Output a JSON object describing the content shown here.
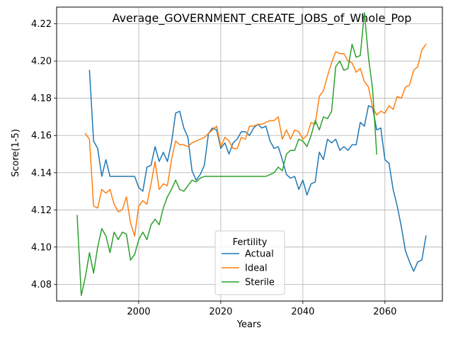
{
  "chart_data": {
    "type": "line",
    "title": "Average_GOVERNMENT_CREATE_JOBS_of_Whole_Pop",
    "xlabel": "Years",
    "ylabel": "Score(1-5)",
    "xlim": [
      1980,
      2074
    ],
    "ylim": [
      4.071,
      4.229
    ],
    "xticks": [
      2000,
      2020,
      2040,
      2060
    ],
    "yticks": [
      4.08,
      4.1,
      4.12,
      4.14,
      4.16,
      4.18,
      4.2,
      4.22
    ],
    "xtick_labels": [
      "2000",
      "2020",
      "2040",
      "2060"
    ],
    "ytick_labels": [
      "4.08",
      "4.10",
      "4.12",
      "4.14",
      "4.16",
      "4.18",
      "4.20",
      "4.22"
    ],
    "grid": true,
    "legend": {
      "title": "Fertility",
      "position": "lower-center"
    },
    "series": [
      {
        "name": "Actual",
        "color": "#1f77b4",
        "x": [
          1988,
          1989,
          1990,
          1991,
          1992,
          1993,
          1994,
          1995,
          1996,
          1997,
          1998,
          1999,
          2000,
          2001,
          2002,
          2003,
          2004,
          2005,
          2006,
          2007,
          2008,
          2009,
          2010,
          2011,
          2012,
          2013,
          2014,
          2015,
          2016,
          2017,
          2018,
          2019,
          2020,
          2021,
          2022,
          2023,
          2024,
          2025,
          2026,
          2027,
          2028,
          2029,
          2030,
          2031,
          2032,
          2033,
          2034,
          2035,
          2036,
          2037,
          2038,
          2039,
          2040,
          2041,
          2042,
          2043,
          2044,
          2045,
          2046,
          2047,
          2048,
          2049,
          2050,
          2051,
          2052,
          2053,
          2054,
          2055,
          2056,
          2057,
          2058,
          2059,
          2060,
          2061,
          2062,
          2063,
          2064,
          2065,
          2066,
          2067,
          2068,
          2069,
          2070
        ],
        "values": [
          4.195,
          4.157,
          4.153,
          4.138,
          4.147,
          4.138,
          4.138,
          4.138,
          4.138,
          4.138,
          4.138,
          4.138,
          4.132,
          4.13,
          4.143,
          4.144,
          4.154,
          4.146,
          4.151,
          4.146,
          4.156,
          4.172,
          4.173,
          4.164,
          4.159,
          4.141,
          4.136,
          4.139,
          4.144,
          4.161,
          4.164,
          4.163,
          4.153,
          4.156,
          4.15,
          4.156,
          4.158,
          4.162,
          4.162,
          4.16,
          4.164,
          4.166,
          4.164,
          4.165,
          4.157,
          4.153,
          4.154,
          4.147,
          4.139,
          4.137,
          4.138,
          4.131,
          4.136,
          4.128,
          4.134,
          4.135,
          4.151,
          4.147,
          4.158,
          4.156,
          4.158,
          4.152,
          4.154,
          4.152,
          4.155,
          4.155,
          4.167,
          4.165,
          4.176,
          4.175,
          4.163,
          4.164,
          4.147,
          4.145,
          4.131,
          4.122,
          4.111,
          4.098,
          4.092,
          4.087,
          4.092,
          4.093,
          4.106
        ]
      },
      {
        "name": "Ideal",
        "color": "#ff7f0e",
        "x": [
          1987,
          1988,
          1989,
          1990,
          1991,
          1992,
          1993,
          1994,
          1995,
          1996,
          1997,
          1998,
          1999,
          2000,
          2001,
          2002,
          2003,
          2004,
          2005,
          2006,
          2007,
          2008,
          2009,
          2010,
          2011,
          2012,
          2013,
          2014,
          2015,
          2016,
          2017,
          2018,
          2019,
          2020,
          2021,
          2022,
          2023,
          2024,
          2025,
          2026,
          2027,
          2028,
          2029,
          2030,
          2031,
          2032,
          2033,
          2034,
          2035,
          2036,
          2037,
          2038,
          2039,
          2040,
          2041,
          2042,
          2043,
          2044,
          2045,
          2046,
          2047,
          2048,
          2049,
          2050,
          2051,
          2052,
          2053,
          2054,
          2055,
          2056,
          2057,
          2058,
          2059,
          2060,
          2061,
          2062,
          2063,
          2064,
          2065,
          2066,
          2067,
          2068,
          2069,
          2070
        ],
        "values": [
          4.161,
          4.158,
          4.122,
          4.121,
          4.131,
          4.129,
          4.131,
          4.123,
          4.119,
          4.12,
          4.127,
          4.113,
          4.106,
          4.122,
          4.125,
          4.123,
          4.134,
          4.146,
          4.131,
          4.134,
          4.133,
          4.147,
          4.157,
          4.155,
          4.155,
          4.154,
          4.156,
          4.157,
          4.158,
          4.159,
          4.161,
          4.163,
          4.165,
          4.154,
          4.159,
          4.157,
          4.153,
          4.153,
          4.159,
          4.158,
          4.165,
          4.165,
          4.166,
          4.166,
          4.167,
          4.168,
          4.168,
          4.17,
          4.158,
          4.163,
          4.158,
          4.163,
          4.162,
          4.158,
          4.16,
          4.167,
          4.166,
          4.181,
          4.184,
          4.192,
          4.199,
          4.205,
          4.204,
          4.204,
          4.2,
          4.199,
          4.194,
          4.196,
          4.189,
          4.186,
          4.175,
          4.171,
          4.173,
          4.172,
          4.176,
          4.174,
          4.181,
          4.18,
          4.186,
          4.187,
          4.195,
          4.197,
          4.206,
          4.209
        ]
      },
      {
        "name": "Sterile",
        "color": "#2ca02c",
        "x": [
          1985,
          1986,
          1987,
          1988,
          1989,
          1990,
          1991,
          1992,
          1993,
          1994,
          1995,
          1996,
          1997,
          1998,
          1999,
          2000,
          2001,
          2002,
          2003,
          2004,
          2005,
          2006,
          2007,
          2008,
          2009,
          2010,
          2011,
          2012,
          2013,
          2014,
          2015,
          2016,
          2017,
          2018,
          2019,
          2020,
          2021,
          2022,
          2023,
          2024,
          2025,
          2026,
          2027,
          2028,
          2029,
          2030,
          2031,
          2032,
          2033,
          2034,
          2035,
          2036,
          2037,
          2038,
          2039,
          2040,
          2041,
          2042,
          2043,
          2044,
          2045,
          2046,
          2047,
          2048,
          2049,
          2050,
          2051,
          2052,
          2053,
          2054,
          2055,
          2056,
          2057,
          2058
        ],
        "values": [
          4.117,
          4.074,
          4.084,
          4.097,
          4.086,
          4.1,
          4.11,
          4.106,
          4.097,
          4.108,
          4.104,
          4.108,
          4.107,
          4.093,
          4.096,
          4.104,
          4.108,
          4.104,
          4.112,
          4.115,
          4.112,
          4.121,
          4.127,
          4.131,
          4.136,
          4.131,
          4.13,
          4.133,
          4.136,
          4.135,
          4.137,
          4.138,
          4.138,
          4.138,
          4.138,
          4.138,
          4.138,
          4.138,
          4.138,
          4.138,
          4.138,
          4.138,
          4.138,
          4.138,
          4.138,
          4.138,
          4.138,
          4.139,
          4.14,
          4.143,
          4.141,
          4.15,
          4.152,
          4.152,
          4.158,
          4.157,
          4.154,
          4.16,
          4.168,
          4.163,
          4.17,
          4.169,
          4.173,
          4.197,
          4.2,
          4.195,
          4.196,
          4.209,
          4.202,
          4.203,
          4.226,
          4.202,
          4.185,
          4.15
        ]
      }
    ]
  }
}
